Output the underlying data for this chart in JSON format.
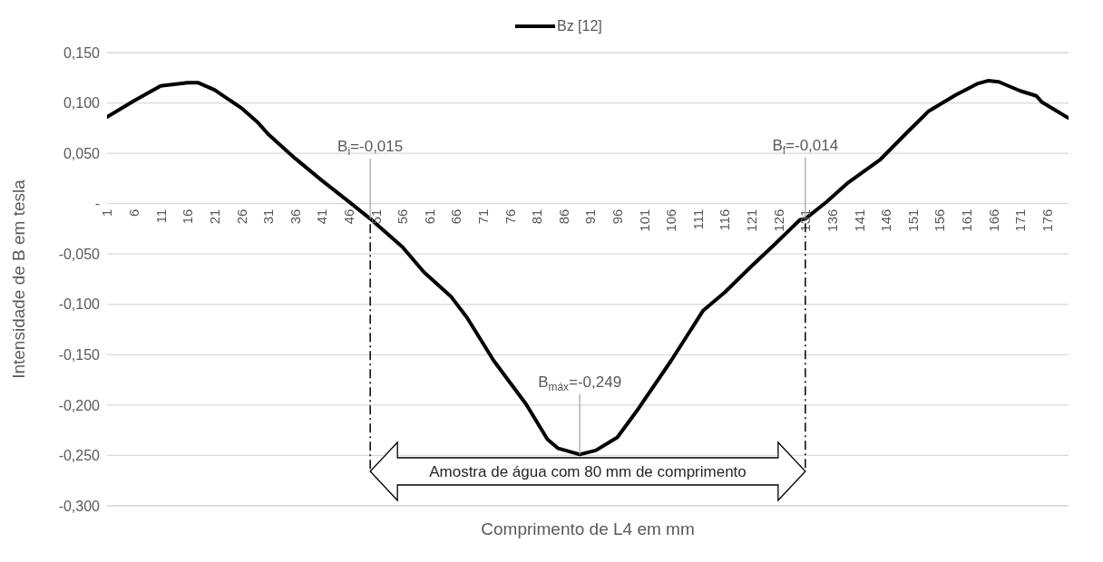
{
  "chart_data": {
    "type": "line",
    "xlabel": "Comprimento de L4 em mm",
    "ylabel": "Intensidade de B em tesla",
    "xlim": [
      1,
      180
    ],
    "xticks": [
      1,
      6,
      11,
      16,
      21,
      26,
      31,
      36,
      41,
      46,
      51,
      56,
      61,
      66,
      71,
      76,
      81,
      86,
      91,
      96,
      101,
      106,
      111,
      116,
      121,
      126,
      131,
      136,
      141,
      146,
      151,
      156,
      161,
      166,
      171,
      176
    ],
    "ylim": [
      -0.3,
      0.15
    ],
    "yticks": [
      {
        "value": -0.3,
        "label": "-0,300"
      },
      {
        "value": -0.25,
        "label": "-0,250"
      },
      {
        "value": -0.2,
        "label": "-0,200"
      },
      {
        "value": -0.15,
        "label": "-0,150"
      },
      {
        "value": -0.1,
        "label": "-0,100"
      },
      {
        "value": -0.05,
        "label": "-0,050"
      },
      {
        "value": 0,
        "label": "-"
      },
      {
        "value": 0.05,
        "label": "0,050"
      },
      {
        "value": 0.1,
        "label": "0,100"
      },
      {
        "value": 0.15,
        "label": "0,150"
      }
    ],
    "grid": "y",
    "legend": "top",
    "marker": "none",
    "line_style": "solid",
    "series": [
      {
        "name": "Bz [12]",
        "color": "#000000",
        "x": [
          1,
          6,
          11,
          16,
          18,
          21,
          26,
          29,
          31,
          36,
          41,
          46,
          50,
          56,
          60,
          65,
          68,
          73,
          79,
          83,
          85,
          89,
          92,
          96,
          100,
          106,
          112,
          116,
          121,
          125,
          130,
          131,
          135,
          139,
          145,
          150,
          154,
          159,
          163,
          165,
          167,
          171,
          174,
          175,
          180
        ],
        "values": [
          0.086,
          0.102,
          0.117,
          0.12,
          0.12,
          0.113,
          0.095,
          0.081,
          0.069,
          0.045,
          0.023,
          0.002,
          -0.015,
          -0.043,
          -0.068,
          -0.092,
          -0.113,
          -0.156,
          -0.199,
          -0.234,
          -0.243,
          -0.249,
          -0.245,
          -0.232,
          -0.203,
          -0.156,
          -0.106,
          -0.088,
          -0.062,
          -0.042,
          -0.016,
          -0.015,
          0.002,
          0.021,
          0.044,
          0.071,
          0.092,
          0.108,
          0.119,
          0.122,
          0.121,
          0.112,
          0.107,
          0.101,
          0.085
        ]
      }
    ],
    "annotations": [
      {
        "text": "B$_{i}$=-0,015",
        "x": 50,
        "y": -0.015
      },
      {
        "text": "B$_{f}$=-0,014",
        "x": 131,
        "y": -0.014
      },
      {
        "text": "B$_{máx}$=-0,249",
        "x": 89,
        "y": -0.249
      },
      "Amostra de água com 80 mm de comprimento"
    ]
  }
}
